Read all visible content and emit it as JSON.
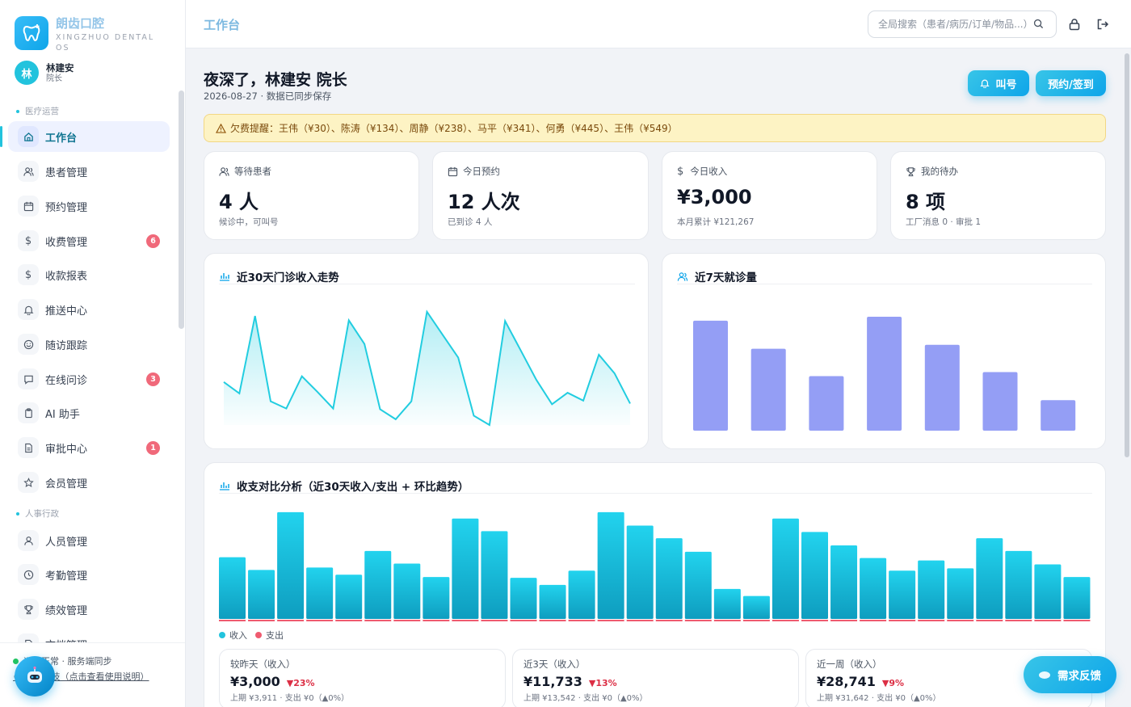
{
  "app": {
    "brand_name": "朗齿口腔",
    "brand_sub": "XINGZHUO DENTAL OS",
    "user_avatar": "林",
    "user_name": "林建安",
    "user_role": "院长"
  },
  "sidebar": {
    "section_medical": "医疗运营",
    "section_hr": "人事行政",
    "items": [
      {
        "label": "工作台",
        "icon": "home-icon",
        "badge": ""
      },
      {
        "label": "患者管理",
        "icon": "users-icon",
        "badge": ""
      },
      {
        "label": "预约管理",
        "icon": "calendar-icon",
        "badge": ""
      },
      {
        "label": "收费管理",
        "icon": "dollar-icon",
        "badge": "6"
      },
      {
        "label": "收款报表",
        "icon": "dollar-icon",
        "badge": ""
      },
      {
        "label": "推送中心",
        "icon": "bell-icon",
        "badge": ""
      },
      {
        "label": "随访跟踪",
        "icon": "smile-icon",
        "badge": ""
      },
      {
        "label": "在线问诊",
        "icon": "chat-icon",
        "badge": "3"
      },
      {
        "label": "AI 助手",
        "icon": "clipboard-icon",
        "badge": ""
      },
      {
        "label": "审批中心",
        "icon": "file-icon",
        "badge": "1"
      },
      {
        "label": "会员管理",
        "icon": "star-icon",
        "badge": ""
      },
      {
        "label": "人员管理",
        "icon": "user-icon",
        "badge": ""
      },
      {
        "label": "考勤管理",
        "icon": "clock-icon",
        "badge": ""
      },
      {
        "label": "绩效管理",
        "icon": "trophy-icon",
        "badge": ""
      },
      {
        "label": "文档管理",
        "icon": "doc-icon",
        "badge": ""
      }
    ],
    "status": "运行正常 · 服务端同步",
    "company": "© 星灼科技（点击查看使用说明）"
  },
  "header": {
    "title": "工作台",
    "search_placeholder": "全局搜索（患者/病历/订单/物品...）"
  },
  "main": {
    "greeting": "夜深了，林建安 院长",
    "date_line": "2026-08-27 · 数据已同步保存",
    "btn_call": "叫号",
    "btn_checkin": "预约/签到",
    "alert": "欠费提醒：王伟（¥30）、陈涛（¥134）、周静（¥238）、马平（¥341）、何勇（¥445）、王伟（¥549）",
    "stats": [
      {
        "label": "等待患者",
        "value": "4 人",
        "sub": "候诊中，可叫号",
        "icon": "users-icon"
      },
      {
        "label": "今日预约",
        "value": "12 人次",
        "sub": "已到诊 4 人",
        "icon": "calendar-icon"
      },
      {
        "label": "今日收入",
        "value": "¥3,000",
        "sub": "本月累计 ¥121,267",
        "icon": "dollar-icon"
      },
      {
        "label": "我的待办",
        "value": "8 项",
        "sub": "工厂消息 0 · 审批 1",
        "icon": "trophy-icon"
      }
    ],
    "chart1_title": "近30天门诊收入走势",
    "chart2_title": "近7天就诊量",
    "chart3_title": "收支对比分析（近30天收入/支出 + 环比趋势）",
    "legend_income": "收入",
    "legend_expense": "支出",
    "compare": [
      {
        "label": "较昨天（收入）",
        "value": "¥3,000",
        "change": "▼23%",
        "sub": "上期 ¥3,911 · 支出 ¥0（▲0%）"
      },
      {
        "label": "近3天（收入）",
        "value": "¥11,733",
        "change": "▼13%",
        "sub": "上期 ¥13,542 · 支出 ¥0（▲0%）"
      },
      {
        "label": "近一周（收入）",
        "value": "¥28,741",
        "change": "▼9%",
        "sub": "上期 ¥31,642 · 支出 ¥0（▲0%）"
      }
    ],
    "feedback": "需求反馈"
  },
  "colors": {
    "accent": "#22c3dd",
    "line": "#22cde0",
    "bar_violet": "#949ef5",
    "bar_income": "#19b8d8",
    "expense": "#ef5b6f"
  },
  "chart_data": [
    {
      "type": "area",
      "title": "近30天门诊收入走势",
      "values": [
        60,
        44,
        152,
        33,
        23,
        68,
        46,
        23,
        146,
        113,
        22,
        8,
        33,
        158,
        126,
        94,
        13,
        0,
        145,
        104,
        63,
        29,
        45,
        34,
        98,
        72,
        30
      ],
      "ylim": [
        0,
        160
      ]
    },
    {
      "type": "bar",
      "title": "近7天就诊量",
      "values": [
        137,
        102,
        68,
        142,
        107,
        73,
        38
      ],
      "ylim": [
        0,
        150
      ]
    },
    {
      "type": "bar",
      "title": "收支对比分析（近30天收入/支出 + 环比趋势）",
      "series": [
        {
          "name": "收入",
          "values": [
            78,
            62,
            135,
            65,
            56,
            86,
            70,
            53,
            127,
            111,
            52,
            43,
            61,
            135,
            118,
            102,
            85,
            38,
            29,
            127,
            110,
            93,
            77,
            61,
            74,
            64,
            102,
            86,
            69,
            53
          ]
        },
        {
          "name": "支出",
          "values": [
            0,
            0,
            0,
            0,
            0,
            0,
            0,
            0,
            0,
            0,
            0,
            0,
            0,
            0,
            0,
            0,
            0,
            0,
            0,
            0,
            0,
            0,
            0,
            0,
            0,
            0,
            0,
            0,
            0,
            0
          ]
        }
      ],
      "ylim": [
        0,
        140
      ]
    }
  ]
}
